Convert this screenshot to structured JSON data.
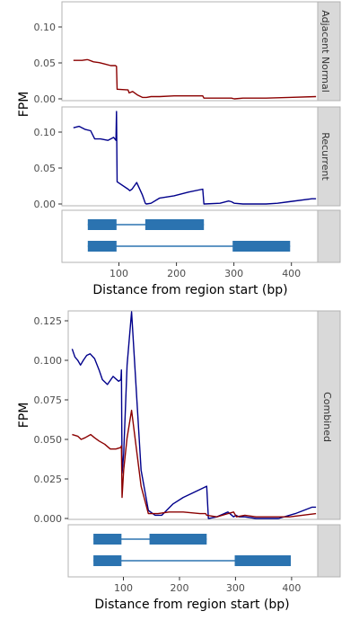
{
  "colors": {
    "series_normal": "#8b0000",
    "series_recurrent": "#00008b",
    "exon": "#2b73b0",
    "strip_bg": "#d9d9d9",
    "panel_border": "#b3b3b3"
  },
  "chart_data": [
    {
      "type": "line",
      "panels": [
        {
          "strip": "Adjacent Normal",
          "ylabel": "",
          "ylim": [
            0,
            0.13
          ],
          "yticks": [
            "0.00",
            "0.05",
            "0.10"
          ],
          "series": [
            {
              "color": "#8b0000",
              "x": [
                25,
                32,
                40,
                48,
                50,
                60,
                70,
                80,
                90,
                98,
                100,
                101,
                120,
                122,
                128,
                137,
                145,
                152,
                160,
                175,
                200,
                225,
                250,
                252,
                280,
                300,
                305,
                320,
                360,
                400,
                447
              ],
              "y": [
                0.052,
                0.052,
                0.052,
                0.053,
                0.053,
                0.05,
                0.049,
                0.047,
                0.045,
                0.045,
                0.044,
                0.013,
                0.012,
                0.008,
                0.01,
                0.005,
                0.002,
                0.002,
                0.003,
                0.003,
                0.004,
                0.004,
                0.004,
                0.001,
                0.001,
                0.001,
                0.0,
                0.001,
                0.001,
                0.002,
                0.003
              ]
            }
          ]
        },
        {
          "strip": "Recurrent",
          "ylabel": "",
          "ylim": [
            0,
            0.13
          ],
          "yticks": [
            "0.00",
            "0.05",
            "0.10"
          ],
          "series": [
            {
              "color": "#00008b",
              "x": [
                25,
                35,
                45,
                55,
                62,
                72,
                85,
                95,
                99,
                100,
                101,
                120,
                123,
                127,
                135,
                145,
                150,
                152,
                160,
                175,
                200,
                225,
                250,
                252,
                280,
                295,
                300,
                305,
                320,
                340,
                360,
                380,
                400,
                440,
                447
              ],
              "y": [
                0.103,
                0.105,
                0.101,
                0.099,
                0.088,
                0.088,
                0.086,
                0.09,
                0.086,
                0.125,
                0.03,
                0.02,
                0.018,
                0.02,
                0.029,
                0.012,
                0.001,
                0.0,
                0.001,
                0.008,
                0.011,
                0.016,
                0.02,
                0.0,
                0.001,
                0.004,
                0.003,
                0.001,
                0.0,
                0.0,
                0.0,
                0.001,
                0.003,
                0.007,
                0.007
              ]
            }
          ]
        }
      ],
      "ylabel": "FPM",
      "xlabel": "Distance from region start (bp)",
      "xlim": [
        5,
        450
      ],
      "xticks": [
        "100",
        "200",
        "300",
        "400"
      ],
      "transcripts": [
        {
          "exons": [
            [
              50,
              100
            ],
            [
              150,
              252
            ]
          ]
        },
        {
          "exons": [
            [
              50,
              100
            ],
            [
              302,
              402
            ]
          ]
        }
      ]
    },
    {
      "type": "line",
      "panels": [
        {
          "strip": "Combined",
          "ylabel": "FPM",
          "ylim": [
            0,
            0.128
          ],
          "yticks": [
            "0.000",
            "0.025",
            "0.050",
            "0.075",
            "0.100",
            "0.125"
          ],
          "series": [
            {
              "color": "#00008b",
              "x": [
                12,
                17,
                22,
                27,
                32,
                38,
                44,
                52,
                60,
                66,
                75,
                85,
                95,
                99,
                100,
                101,
                104,
                110,
                118,
                135,
                148,
                160,
                172,
                192,
                210,
                240,
                252,
                255,
                270,
                290,
                300,
                304,
                310,
                320,
                340,
                380,
                410,
                440,
                447
              ],
              "y": [
                0.105,
                0.1,
                0.098,
                0.095,
                0.098,
                0.101,
                0.102,
                0.099,
                0.092,
                0.086,
                0.083,
                0.088,
                0.085,
                0.086,
                0.092,
                0.028,
                0.04,
                0.095,
                0.128,
                0.03,
                0.005,
                0.002,
                0.002,
                0.009,
                0.013,
                0.018,
                0.02,
                0.0,
                0.001,
                0.004,
                0.001,
                0.002,
                0.001,
                0.001,
                0.0,
                0.0,
                0.003,
                0.007,
                0.007
              ]
            },
            {
              "color": "#8b0000",
              "x": [
                12,
                22,
                28,
                35,
                45,
                52,
                60,
                70,
                80,
                90,
                99,
                100,
                101,
                104,
                110,
                118,
                135,
                148,
                165,
                185,
                210,
                240,
                250,
                252,
                270,
                300,
                305,
                320,
                340,
                400,
                447
              ],
              "y": [
                0.052,
                0.051,
                0.049,
                0.05,
                0.052,
                0.05,
                0.048,
                0.046,
                0.043,
                0.043,
                0.044,
                0.045,
                0.013,
                0.03,
                0.05,
                0.067,
                0.02,
                0.003,
                0.003,
                0.004,
                0.004,
                0.003,
                0.003,
                0.002,
                0.001,
                0.004,
                0.001,
                0.002,
                0.001,
                0.001,
                0.003
              ]
            }
          ]
        }
      ],
      "ylabel": "FPM",
      "xlabel": "Distance from region start (bp)",
      "xlim": [
        5,
        450
      ],
      "xticks": [
        "100",
        "200",
        "300",
        "400"
      ],
      "transcripts": [
        {
          "exons": [
            [
              50,
              100
            ],
            [
              150,
              252
            ]
          ]
        },
        {
          "exons": [
            [
              50,
              100
            ],
            [
              302,
              402
            ]
          ]
        }
      ]
    }
  ]
}
